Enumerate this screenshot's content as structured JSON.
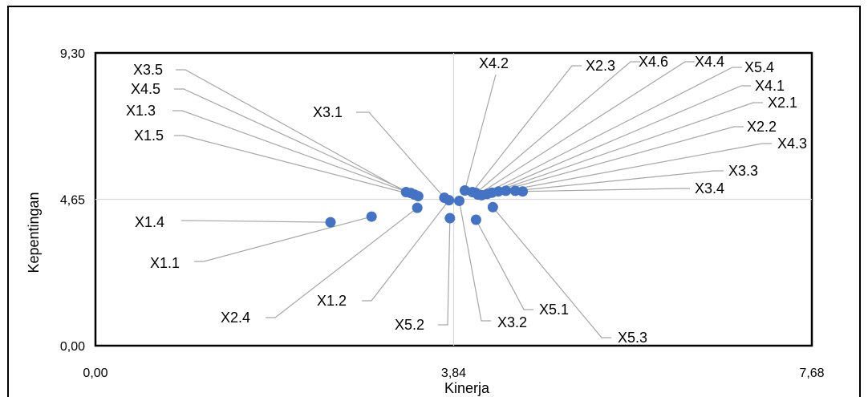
{
  "chart_data": {
    "type": "scatter",
    "xlabel": "Kinerja",
    "ylabel": "Kepentingan",
    "xlim": [
      0,
      7.68
    ],
    "ylim": [
      0,
      9.3
    ],
    "x_ticks": [
      "0,00",
      "3,84",
      "7,68"
    ],
    "y_ticks": [
      "0,00",
      "4,65",
      "9,30"
    ],
    "x_mean": 3.84,
    "y_mean": 4.65,
    "grid": false,
    "marker_color": "#4472C4",
    "leader_color": "#A6A6A6",
    "points": [
      {
        "label": "X3.5",
        "x": 3.33,
        "y": 4.88
      },
      {
        "label": "X4.5",
        "x": 3.38,
        "y": 4.85
      },
      {
        "label": "X1.3",
        "x": 3.42,
        "y": 4.8
      },
      {
        "label": "X1.5",
        "x": 3.46,
        "y": 4.75
      },
      {
        "label": "X3.1",
        "x": 3.74,
        "y": 4.7
      },
      {
        "label": "X4.2",
        "x": 3.96,
        "y": 4.93
      },
      {
        "label": "X2.3",
        "x": 4.04,
        "y": 4.88
      },
      {
        "label": "X4.6",
        "x": 4.08,
        "y": 4.85
      },
      {
        "label": "X4.4",
        "x": 4.1,
        "y": 4.8
      },
      {
        "label": "X5.4",
        "x": 4.14,
        "y": 4.78
      },
      {
        "label": "X4.1",
        "x": 4.2,
        "y": 4.82
      },
      {
        "label": "X2.1",
        "x": 4.25,
        "y": 4.86
      },
      {
        "label": "X2.2",
        "x": 4.32,
        "y": 4.9
      },
      {
        "label": "X4.3",
        "x": 4.4,
        "y": 4.92
      },
      {
        "label": "X3.3",
        "x": 4.5,
        "y": 4.92
      },
      {
        "label": "X3.4",
        "x": 4.58,
        "y": 4.9
      },
      {
        "label": "X1.4",
        "x": 2.52,
        "y": 3.92
      },
      {
        "label": "X1.1",
        "x": 2.96,
        "y": 4.1
      },
      {
        "label": "X2.4",
        "x": 3.45,
        "y": 4.38
      },
      {
        "label": "X1.2",
        "x": 3.79,
        "y": 4.62
      },
      {
        "label": "X5.2",
        "x": 3.8,
        "y": 4.05
      },
      {
        "label": "X3.2",
        "x": 3.9,
        "y": 4.6
      },
      {
        "label": "X5.1",
        "x": 4.08,
        "y": 4.0
      },
      {
        "label": "X5.3",
        "x": 4.26,
        "y": 4.4
      }
    ]
  }
}
